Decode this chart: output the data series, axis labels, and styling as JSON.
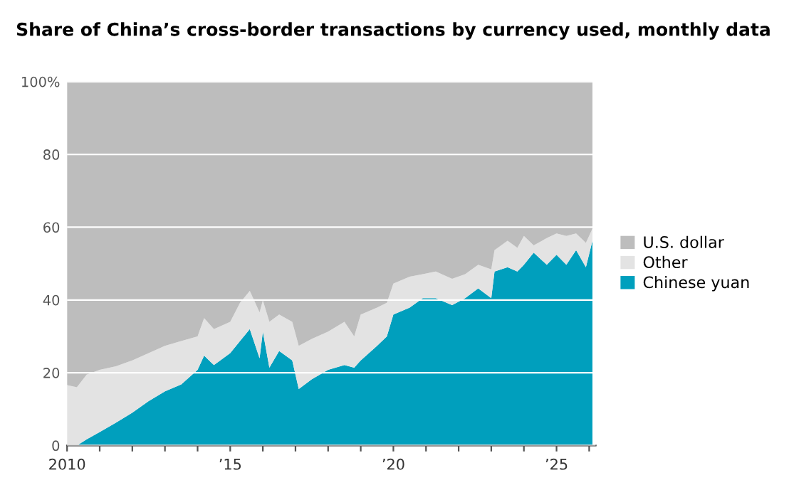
{
  "chart_data": {
    "type": "area",
    "stacked": true,
    "title": "Share of China’s cross-border transactions by currency used, monthly data",
    "x": [
      2010.0,
      2010.3,
      2010.6,
      2011.0,
      2011.5,
      2012.0,
      2012.5,
      2013.0,
      2013.5,
      2014.0,
      2014.2,
      2014.5,
      2015.0,
      2015.3,
      2015.6,
      2015.9,
      2016.0,
      2016.2,
      2016.5,
      2016.9,
      2017.1,
      2017.5,
      2018.0,
      2018.5,
      2018.8,
      2019.0,
      2019.5,
      2019.8,
      2020.0,
      2020.5,
      2020.9,
      2021.3,
      2021.8,
      2022.2,
      2022.6,
      2023.0,
      2023.1,
      2023.5,
      2023.8,
      2024.0,
      2024.3,
      2024.7,
      2025.0,
      2025.3,
      2025.6,
      2025.9,
      2026.1
    ],
    "series": [
      {
        "name": "Chinese yuan",
        "color": "#009fbd",
        "values": [
          0,
          0,
          1.7,
          3.7,
          6.3,
          9,
          12.2,
          14.9,
          16.8,
          20.8,
          24.7,
          22.1,
          25.4,
          28.7,
          32,
          24,
          31.3,
          21.4,
          26,
          23.4,
          15.5,
          18.2,
          20.8,
          22.1,
          21.4,
          23.4,
          27.4,
          30,
          36,
          37.9,
          40.5,
          40.5,
          38.6,
          40.5,
          43.2,
          40.5,
          47.8,
          49,
          47.8,
          49.7,
          53,
          49.7,
          52.4,
          49.7,
          53.7,
          49,
          56.3
        ]
      },
      {
        "name": "Other",
        "color": "#e3e3e3",
        "values": [
          16.6,
          16,
          17.8,
          17.1,
          15.5,
          14.4,
          13.2,
          12.5,
          11.9,
          9.2,
          10.3,
          9.9,
          8.6,
          10.5,
          10.5,
          12.6,
          8.6,
          12.6,
          10,
          10.6,
          11.9,
          11.1,
          10.5,
          11.9,
          8.6,
          12.6,
          10.5,
          9.2,
          8.5,
          8.5,
          6.6,
          7.3,
          7.2,
          6.6,
          6.5,
          7.9,
          5.9,
          7.3,
          6.5,
          7.9,
          2,
          7.3,
          5.9,
          7.9,
          4.6,
          6.7,
          3.3
        ]
      },
      {
        "name": "U.S. dollar",
        "color": "#bdbdbd",
        "values": [
          83.4,
          84,
          80.5,
          79.2,
          78.2,
          76.6,
          74.6,
          72.6,
          71.3,
          70,
          65,
          68,
          66,
          60.8,
          57.5,
          63.4,
          60.1,
          66,
          64,
          66,
          72.6,
          70.7,
          68.7,
          66,
          70,
          64,
          62.1,
          60.8,
          55.5,
          53.6,
          52.9,
          52.2,
          54.2,
          52.9,
          50.3,
          51.6,
          46.3,
          43.7,
          45.7,
          42.4,
          45,
          43,
          41.7,
          42.4,
          41.7,
          44.3,
          40.4
        ]
      }
    ],
    "xlim": [
      2010.0,
      2026.2
    ],
    "xticks": [
      {
        "value": 2010,
        "label": "2010"
      },
      {
        "value": 2011,
        "label": null
      },
      {
        "value": 2012,
        "label": null
      },
      {
        "value": 2013,
        "label": null
      },
      {
        "value": 2014,
        "label": null
      },
      {
        "value": 2015,
        "label": "’15"
      },
      {
        "value": 2016,
        "label": null
      },
      {
        "value": 2017,
        "label": null
      },
      {
        "value": 2018,
        "label": null
      },
      {
        "value": 2019,
        "label": null
      },
      {
        "value": 2020,
        "label": "’20"
      },
      {
        "value": 2021,
        "label": null
      },
      {
        "value": 2022,
        "label": null
      },
      {
        "value": 2023,
        "label": null
      },
      {
        "value": 2024,
        "label": null
      },
      {
        "value": 2025,
        "label": "’25"
      },
      {
        "value": 2026,
        "label": null
      }
    ],
    "ylim": [
      0,
      100
    ],
    "yticks": [
      0,
      20,
      40,
      60,
      80,
      {
        "value": 100,
        "label": "100%"
      }
    ],
    "grid": "y",
    "legend": "right"
  }
}
